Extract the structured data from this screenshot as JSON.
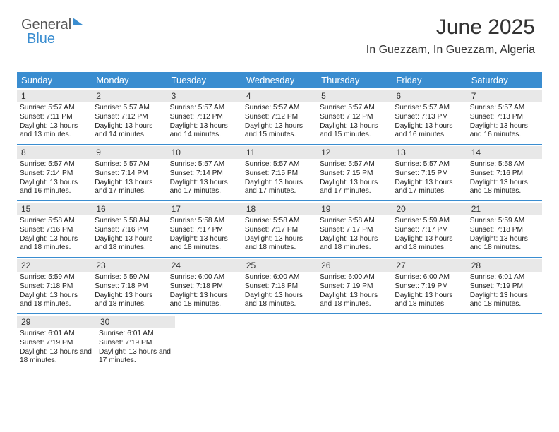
{
  "logo": {
    "part1": "General",
    "part2": "Blue"
  },
  "title": "June 2025",
  "location": "In Guezzam, In Guezzam, Algeria",
  "colors": {
    "header_bg": "#3a8dd0",
    "header_text": "#ffffff",
    "daynum_bg": "#e8e8e8",
    "border": "#3a8dd0",
    "logo_accent": "#3a8dd0"
  },
  "weekdays": [
    "Sunday",
    "Monday",
    "Tuesday",
    "Wednesday",
    "Thursday",
    "Friday",
    "Saturday"
  ],
  "days": [
    {
      "n": 1,
      "sunrise": "5:57 AM",
      "sunset": "7:11 PM",
      "daylight": "13 hours and 13 minutes."
    },
    {
      "n": 2,
      "sunrise": "5:57 AM",
      "sunset": "7:12 PM",
      "daylight": "13 hours and 14 minutes."
    },
    {
      "n": 3,
      "sunrise": "5:57 AM",
      "sunset": "7:12 PM",
      "daylight": "13 hours and 14 minutes."
    },
    {
      "n": 4,
      "sunrise": "5:57 AM",
      "sunset": "7:12 PM",
      "daylight": "13 hours and 15 minutes."
    },
    {
      "n": 5,
      "sunrise": "5:57 AM",
      "sunset": "7:12 PM",
      "daylight": "13 hours and 15 minutes."
    },
    {
      "n": 6,
      "sunrise": "5:57 AM",
      "sunset": "7:13 PM",
      "daylight": "13 hours and 16 minutes."
    },
    {
      "n": 7,
      "sunrise": "5:57 AM",
      "sunset": "7:13 PM",
      "daylight": "13 hours and 16 minutes."
    },
    {
      "n": 8,
      "sunrise": "5:57 AM",
      "sunset": "7:14 PM",
      "daylight": "13 hours and 16 minutes."
    },
    {
      "n": 9,
      "sunrise": "5:57 AM",
      "sunset": "7:14 PM",
      "daylight": "13 hours and 17 minutes."
    },
    {
      "n": 10,
      "sunrise": "5:57 AM",
      "sunset": "7:14 PM",
      "daylight": "13 hours and 17 minutes."
    },
    {
      "n": 11,
      "sunrise": "5:57 AM",
      "sunset": "7:15 PM",
      "daylight": "13 hours and 17 minutes."
    },
    {
      "n": 12,
      "sunrise": "5:57 AM",
      "sunset": "7:15 PM",
      "daylight": "13 hours and 17 minutes."
    },
    {
      "n": 13,
      "sunrise": "5:57 AM",
      "sunset": "7:15 PM",
      "daylight": "13 hours and 17 minutes."
    },
    {
      "n": 14,
      "sunrise": "5:58 AM",
      "sunset": "7:16 PM",
      "daylight": "13 hours and 18 minutes."
    },
    {
      "n": 15,
      "sunrise": "5:58 AM",
      "sunset": "7:16 PM",
      "daylight": "13 hours and 18 minutes."
    },
    {
      "n": 16,
      "sunrise": "5:58 AM",
      "sunset": "7:16 PM",
      "daylight": "13 hours and 18 minutes."
    },
    {
      "n": 17,
      "sunrise": "5:58 AM",
      "sunset": "7:17 PM",
      "daylight": "13 hours and 18 minutes."
    },
    {
      "n": 18,
      "sunrise": "5:58 AM",
      "sunset": "7:17 PM",
      "daylight": "13 hours and 18 minutes."
    },
    {
      "n": 19,
      "sunrise": "5:58 AM",
      "sunset": "7:17 PM",
      "daylight": "13 hours and 18 minutes."
    },
    {
      "n": 20,
      "sunrise": "5:59 AM",
      "sunset": "7:17 PM",
      "daylight": "13 hours and 18 minutes."
    },
    {
      "n": 21,
      "sunrise": "5:59 AM",
      "sunset": "7:18 PM",
      "daylight": "13 hours and 18 minutes."
    },
    {
      "n": 22,
      "sunrise": "5:59 AM",
      "sunset": "7:18 PM",
      "daylight": "13 hours and 18 minutes."
    },
    {
      "n": 23,
      "sunrise": "5:59 AM",
      "sunset": "7:18 PM",
      "daylight": "13 hours and 18 minutes."
    },
    {
      "n": 24,
      "sunrise": "6:00 AM",
      "sunset": "7:18 PM",
      "daylight": "13 hours and 18 minutes."
    },
    {
      "n": 25,
      "sunrise": "6:00 AM",
      "sunset": "7:18 PM",
      "daylight": "13 hours and 18 minutes."
    },
    {
      "n": 26,
      "sunrise": "6:00 AM",
      "sunset": "7:19 PM",
      "daylight": "13 hours and 18 minutes."
    },
    {
      "n": 27,
      "sunrise": "6:00 AM",
      "sunset": "7:19 PM",
      "daylight": "13 hours and 18 minutes."
    },
    {
      "n": 28,
      "sunrise": "6:01 AM",
      "sunset": "7:19 PM",
      "daylight": "13 hours and 18 minutes."
    },
    {
      "n": 29,
      "sunrise": "6:01 AM",
      "sunset": "7:19 PM",
      "daylight": "13 hours and 18 minutes."
    },
    {
      "n": 30,
      "sunrise": "6:01 AM",
      "sunset": "7:19 PM",
      "daylight": "13 hours and 17 minutes."
    }
  ],
  "labels": {
    "sunrise": "Sunrise:",
    "sunset": "Sunset:",
    "daylight": "Daylight:"
  },
  "layout": {
    "start_weekday": 0,
    "weeks": 5
  }
}
